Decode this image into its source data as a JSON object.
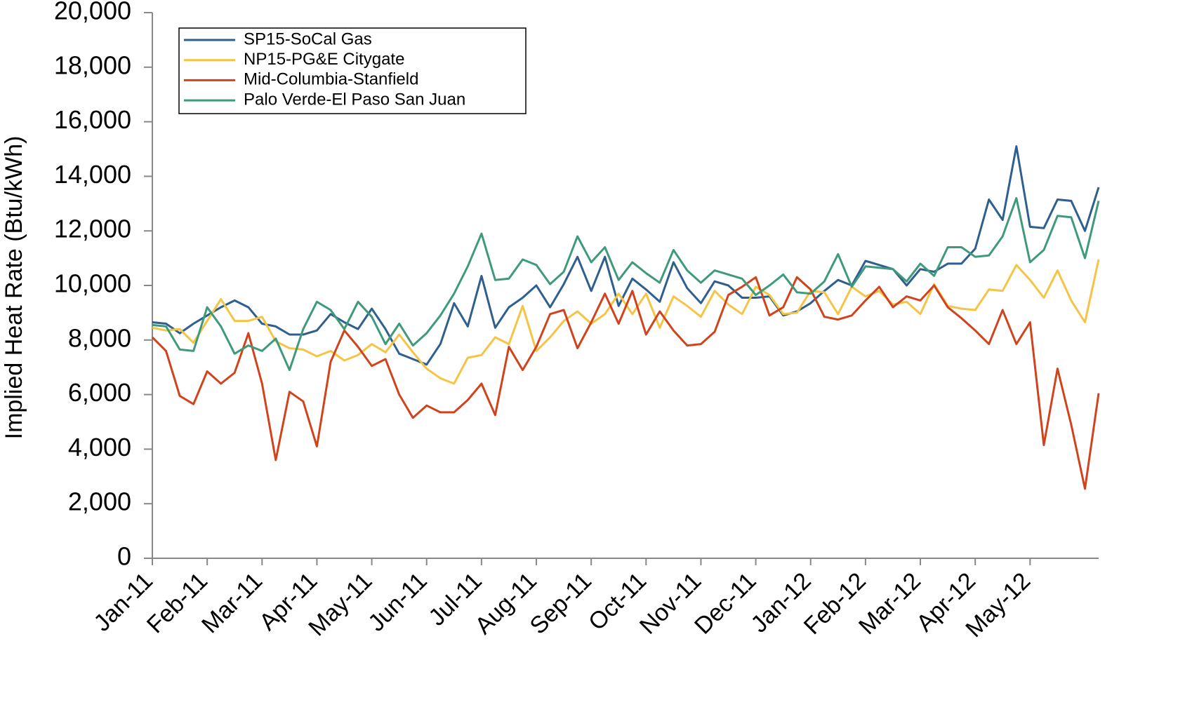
{
  "chart_data": {
    "type": "line",
    "y_label": "Implied Heat Rate (Btu/kWh)",
    "categories": [
      "Jan-11",
      null,
      null,
      null,
      "Feb-11",
      null,
      null,
      null,
      "Mar-11",
      null,
      null,
      null,
      "Apr-11",
      null,
      null,
      null,
      "May-11",
      null,
      null,
      null,
      "Jun-11",
      null,
      null,
      null,
      "Jul-11",
      null,
      null,
      null,
      "Aug-11",
      null,
      null,
      null,
      "Sep-11",
      null,
      null,
      null,
      "Oct-11",
      null,
      null,
      null,
      "Nov-11",
      null,
      null,
      null,
      "Dec-11",
      null,
      null,
      null,
      "Jan-12",
      null,
      null,
      null,
      "Feb-12",
      null,
      null,
      null,
      "Mar-12",
      null,
      null,
      null,
      "Apr-12",
      null,
      null,
      null,
      "May-12",
      null,
      null,
      null,
      null,
      null
    ],
    "series": [
      {
        "name": "SP15-SoCal Gas",
        "color": "#2e5f8e",
        "values": [
          8650,
          8600,
          8250,
          8600,
          8900,
          9200,
          9450,
          9200,
          8600,
          8500,
          8200,
          8200,
          8350,
          8950,
          8650,
          8400,
          9150,
          8400,
          7500,
          7300,
          7100,
          7850,
          9350,
          8500,
          10350,
          8450,
          9200,
          9550,
          10000,
          9200,
          10050,
          11050,
          9800,
          11050,
          9250,
          10250,
          9850,
          9400,
          10850,
          9900,
          9350,
          10150,
          10000,
          9550,
          9550,
          9600,
          8900,
          9050,
          9350,
          9800,
          10200,
          10000,
          10900,
          10750,
          10600,
          10000,
          10600,
          10500,
          10800,
          10800,
          11350,
          13150,
          12400,
          15100,
          12150,
          12100,
          13150,
          13100,
          12000,
          13600
        ]
      },
      {
        "name": "NP15-PG&E Citygate",
        "color": "#f6c445",
        "values": [
          8450,
          8350,
          8400,
          7900,
          8700,
          9500,
          8700,
          8700,
          8850,
          7950,
          7700,
          7650,
          7400,
          7600,
          7250,
          7450,
          7850,
          7550,
          8200,
          7550,
          6950,
          6600,
          6400,
          7350,
          7450,
          8100,
          7850,
          9250,
          7600,
          8100,
          8700,
          9050,
          8600,
          8950,
          9700,
          8950,
          9700,
          8450,
          9600,
          9250,
          8850,
          9800,
          9300,
          8950,
          9950,
          9650,
          8950,
          9000,
          9800,
          9750,
          8950,
          9950,
          9600,
          9800,
          9300,
          9400,
          8950,
          10050,
          9250,
          9150,
          9100,
          9850,
          9800,
          10750,
          10200,
          9550,
          10550,
          9450,
          8650,
          10950
        ]
      },
      {
        "name": "Mid-Columbia-Stanfield",
        "color": "#d0431c",
        "values": [
          8100,
          7600,
          5950,
          5650,
          6850,
          6400,
          6800,
          8250,
          6400,
          3600,
          6100,
          5750,
          4100,
          7200,
          8350,
          7750,
          7050,
          7300,
          6000,
          5150,
          5600,
          5350,
          5350,
          5800,
          6400,
          5250,
          7750,
          6900,
          7750,
          8950,
          9100,
          7700,
          8650,
          9700,
          8600,
          9800,
          8200,
          9050,
          8350,
          7800,
          7850,
          8300,
          9650,
          9950,
          10300,
          8900,
          9200,
          10300,
          9850,
          8850,
          8750,
          8900,
          9450,
          9950,
          9200,
          9600,
          9450,
          10000,
          9200,
          8800,
          8350,
          7850,
          9100,
          7850,
          8650,
          4150,
          6950,
          4900,
          2550,
          6050
        ]
      },
      {
        "name": "Palo Verde-El Paso San Juan",
        "color": "#3f9a7c",
        "values": [
          8550,
          8500,
          7650,
          7600,
          9200,
          8500,
          7500,
          7800,
          7600,
          8050,
          6900,
          8400,
          9400,
          9100,
          8400,
          9400,
          8850,
          7850,
          8600,
          7800,
          8250,
          8900,
          9700,
          10700,
          11900,
          10200,
          10250,
          10950,
          10750,
          10050,
          10500,
          11800,
          10850,
          11400,
          10200,
          10850,
          10450,
          10100,
          11300,
          10550,
          10100,
          10550,
          10400,
          10250,
          9650,
          10000,
          10400,
          9750,
          9700,
          10150,
          11150,
          9950,
          10700,
          10650,
          10600,
          10150,
          10800,
          10350,
          11400,
          11400,
          11050,
          11100,
          11800,
          13200,
          10850,
          11300,
          12550,
          12500,
          11000,
          13100
        ]
      }
    ],
    "ylim": [
      0,
      20000
    ],
    "yticks": [
      0,
      {
        "value": 2000,
        "label": "2,000"
      },
      {
        "value": 4000,
        "label": "4,000"
      },
      {
        "value": 6000,
        "label": "6,000"
      },
      {
        "value": 8000,
        "label": "8,000"
      },
      {
        "value": 10000,
        "label": "10,000"
      },
      {
        "value": 12000,
        "label": "12,000"
      },
      {
        "value": 14000,
        "label": "14,000"
      },
      {
        "value": 16000,
        "label": "16,000"
      },
      {
        "value": 18000,
        "label": "18,000"
      },
      {
        "value": 20000,
        "label": "20,000"
      }
    ],
    "grid": false,
    "legend": "upper left"
  }
}
